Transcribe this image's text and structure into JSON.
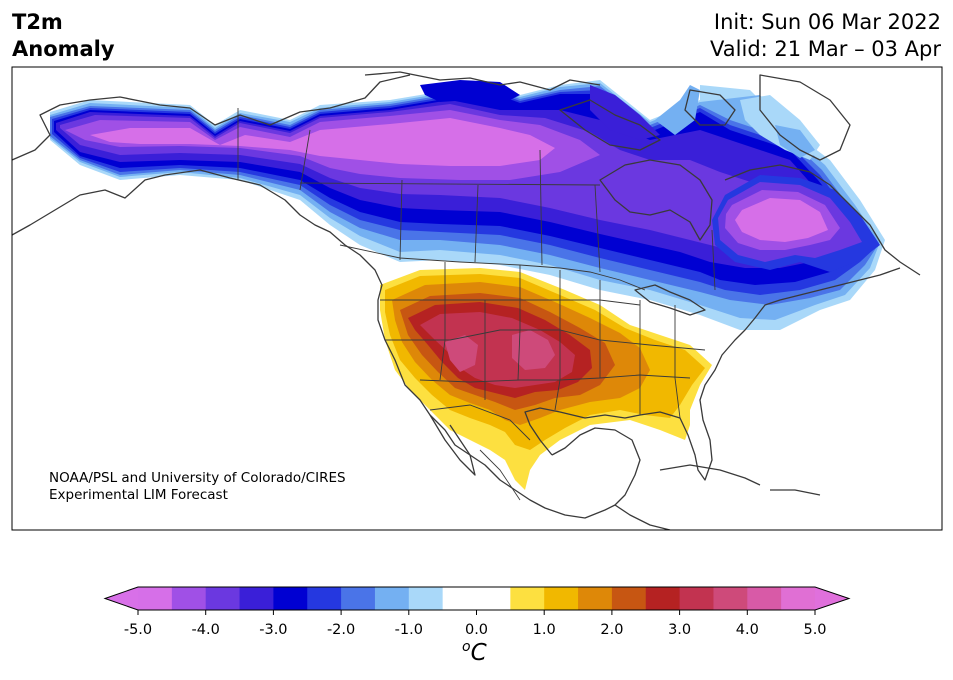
{
  "header": {
    "variable_line1": "T2m",
    "variable_line2": "Anomaly",
    "init_line": "Init: Sun 06 Mar 2022",
    "valid_line": "Valid: 21 Mar – 03 Apr"
  },
  "map": {
    "region": "North America",
    "credit_line1": "NOAA/PSL and University of Colorado/CIRES",
    "credit_line2": "Experimental LIM Forecast"
  },
  "colorbar": {
    "ticks": [
      "-5.0",
      "-4.0",
      "-3.0",
      "-2.0",
      "-1.0",
      "0.0",
      "1.0",
      "2.0",
      "3.0",
      "4.0",
      "5.0"
    ],
    "unit_base": "C",
    "unit_sup": "o",
    "levels_min": -5.0,
    "levels_max": 5.0,
    "levels_step": 0.5,
    "extend": "both",
    "colors": [
      "#d66fe8",
      "#a050e6",
      "#6b38e0",
      "#3a1fd8",
      "#0000d2",
      "#2538e0",
      "#4a74e8",
      "#74b0f2",
      "#a9d8f9",
      "#ffffff",
      "#ffffff",
      "#fde040",
      "#f1b800",
      "#de8808",
      "#c75612",
      "#b52222",
      "#c23350",
      "#ce4a7a",
      "#d85aa7",
      "#e06fd4"
    ],
    "under_color": "#d870e8",
    "over_color": "#e070dc"
  },
  "anomaly_regions": [
    {
      "label": "strong cold anomaly over Alaska / Yukon / NW Canada",
      "min_value": -5.0
    },
    {
      "label": "cold anomaly band across southern Canada and northern US",
      "min_value": -3.0
    },
    {
      "label": "cold anomaly over Quebec / Labrador",
      "min_value": -5.0
    },
    {
      "label": "warm anomaly over southern Plains and Southwest US",
      "max_value": 4.5
    }
  ]
}
